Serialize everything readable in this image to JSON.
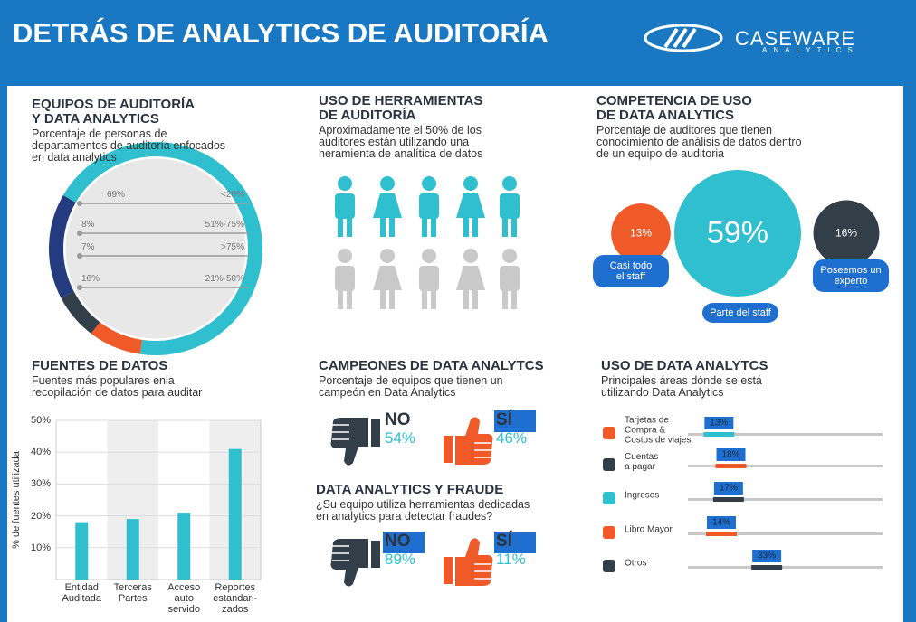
{
  "header": {
    "title": "DETRÁS DE ANALYTICS DE AUDITORÍA",
    "logo": "CASEWARE",
    "logo_sub": "ANALYTICS"
  },
  "chart_data": [
    {
      "type": "donut",
      "title": "EQUIPOS DE AUDITORÍA\nY DATA ANALYTICS",
      "subtitle": "Porcentaje de personas de\ndepartamentos  de auditoría enfocados\nen data analytics",
      "labels": [
        "<20%",
        "51%-75%",
        ">75%",
        "21%-50%"
      ],
      "values": [
        69,
        8,
        7,
        16
      ],
      "value_labels": [
        "69%",
        "8%",
        "7%",
        "16%"
      ],
      "colors": [
        "#2fbfcf",
        "#f05a28",
        "#333f48",
        "#253b80"
      ]
    },
    {
      "type": "pictogram",
      "title": "USO DE HERRAMIENTAS\nDE AUDITORÍA",
      "subtitle": "Aproximadamente el 50% de los\nauditores están utilizando una\nheramienta de analítica de datos"
    },
    {
      "type": "bubble",
      "title": "COMPETENCIA DE USO\nDE DATA ANALYTICS",
      "subtitle": "Porcentaje de auditores que tienen\nconocimiento de análisis de datos dentro\nde un equipo de auditoria",
      "categories": [
        "Casi todo\nel staff",
        "Parte del staff",
        "Poseemos un\nexperto"
      ],
      "values": [
        13,
        59,
        16
      ],
      "value_labels": [
        "13%",
        "59%",
        "16%"
      ],
      "colors": [
        "#f05a28",
        "#2fbfcf",
        "#333f48"
      ]
    },
    {
      "type": "bar",
      "title": "FUENTES DE DATOS",
      "subtitle": "Fuentes más populares enla\nrecopilación de datos para auditar",
      "ylabel": "% de fuentes utilizada",
      "categories": [
        "Entidad\nAuditada",
        "Terceras\nPartes",
        "Acceso\nauto\nservido",
        "Reportes\nestandari-\nzados"
      ],
      "values": [
        18,
        19,
        21,
        41
      ],
      "ylim": [
        0,
        50
      ],
      "yticks": [
        {
          "value": 10,
          "label": "10%"
        },
        {
          "value": 20,
          "label": "20%"
        },
        {
          "value": 30,
          "label": "30%"
        },
        {
          "value": 40,
          "label": "40%"
        },
        {
          "value": 50,
          "label": "50%"
        }
      ],
      "color": "#2fbfcf",
      "grid": true
    },
    {
      "type": "thumbs",
      "title": "CAMPEONES DE DATA ANALYTCS",
      "subtitle": "Porcentaje de equipos que tienen un\ncampeón en Data Analytics",
      "categories": [
        "NO",
        "SÍ"
      ],
      "values": [
        54,
        46
      ],
      "value_labels": [
        "54%",
        "46%"
      ],
      "colors": [
        "#333f48",
        "#f05a28"
      ]
    },
    {
      "type": "thumbs",
      "title": "DATA ANALYTICS Y FRAUDE",
      "subtitle": "¿Su equipo utiliza herramientas dedicadas\nen analytics para detectar fraudes?",
      "categories": [
        "NO",
        "SÍ"
      ],
      "values": [
        89,
        11
      ],
      "value_labels": [
        "89%",
        "11%"
      ],
      "colors": [
        "#333f48",
        "#f05a28"
      ]
    },
    {
      "type": "slider",
      "title": "USO DE DATA ANALYTCS",
      "subtitle": "Principales áreas dónde se está\nutilizando Data Analytics",
      "categories": [
        "Tarjetas de\nCompra &\nCostos de viajes",
        "Cuentas\na pagar",
        "Ingresos",
        "Libro Mayor",
        "Otros"
      ],
      "values": [
        13,
        18,
        17,
        14,
        33
      ],
      "value_labels": [
        "13%",
        "18%",
        "17%",
        "14%",
        "33%"
      ],
      "colors": [
        "#2fbfcf",
        "#f05a28",
        "#333f48",
        "#f05a28",
        "#333f48"
      ]
    }
  ]
}
